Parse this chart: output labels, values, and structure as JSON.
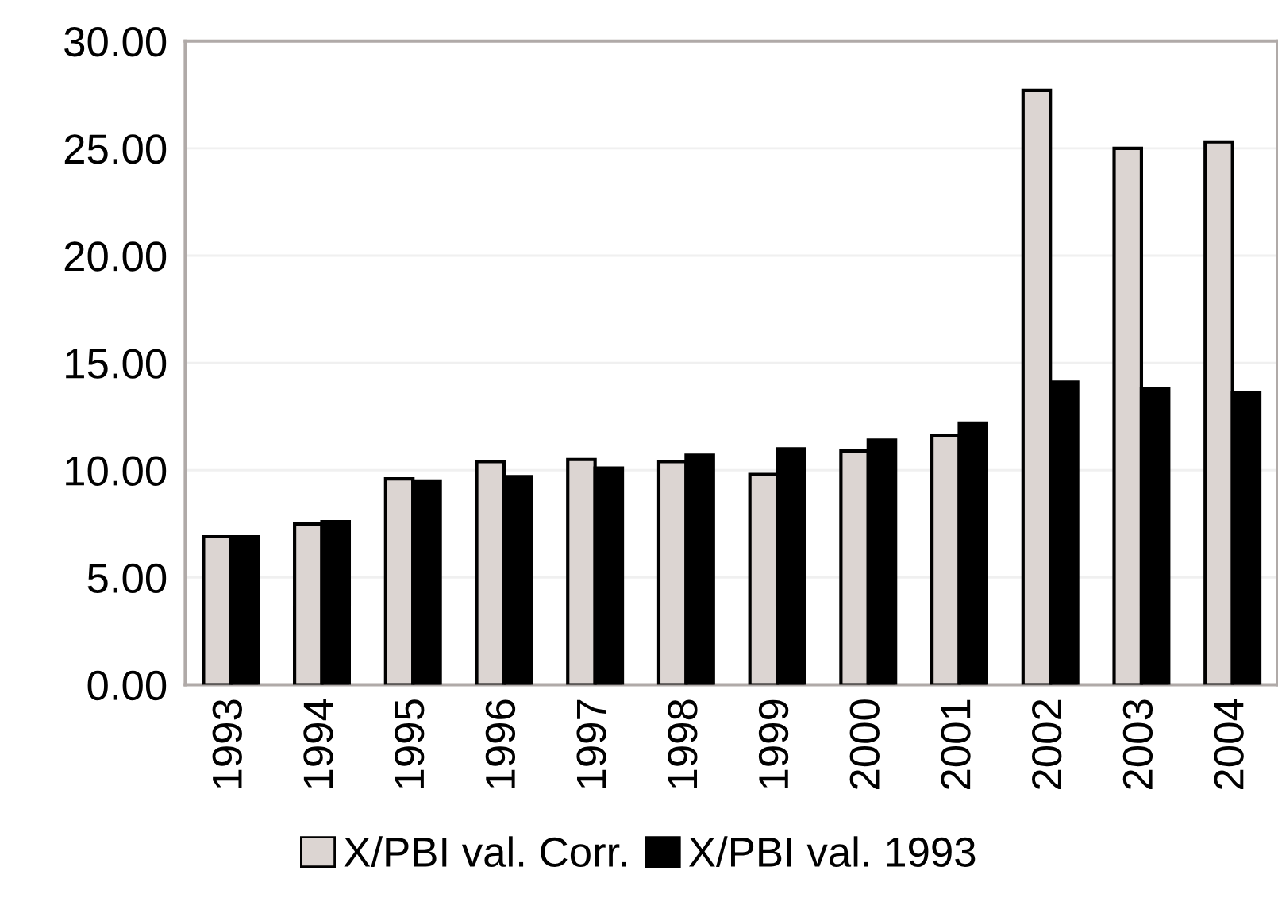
{
  "chart_data": {
    "type": "bar",
    "categories": [
      "1993",
      "1994",
      "1995",
      "1996",
      "1997",
      "1998",
      "1999",
      "2000",
      "2001",
      "2002",
      "2003",
      "2004"
    ],
    "series": [
      {
        "name": "X/PBI val. Corr.",
        "color": "#dcd5d2",
        "values": [
          6.9,
          7.5,
          9.6,
          10.4,
          10.5,
          10.4,
          9.8,
          10.9,
          11.6,
          27.7,
          25.0,
          25.3
        ]
      },
      {
        "name": "X/PBI val. 1993",
        "color": "#000000",
        "values": [
          6.9,
          7.6,
          9.5,
          9.7,
          10.1,
          10.7,
          11.0,
          11.4,
          12.2,
          14.1,
          13.8,
          13.6
        ]
      }
    ],
    "ylim": [
      0,
      30
    ],
    "yticks": [
      {
        "value": 0,
        "label": "0.00"
      },
      {
        "value": 5,
        "label": "5.00"
      },
      {
        "value": 10,
        "label": "10.00"
      },
      {
        "value": 15,
        "label": "15.00"
      },
      {
        "value": 20,
        "label": "20.00"
      },
      {
        "value": 25,
        "label": "25.00"
      },
      {
        "value": 30,
        "label": "30.00"
      }
    ],
    "grid": "y",
    "legend": "bottom"
  }
}
